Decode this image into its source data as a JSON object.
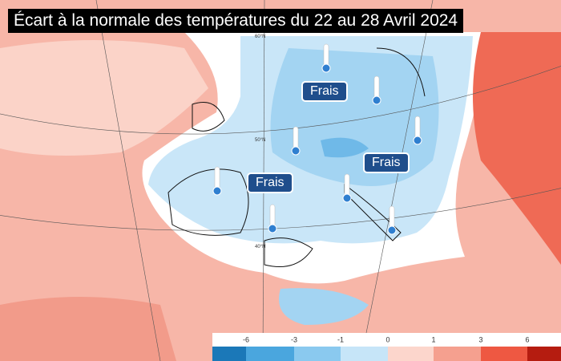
{
  "header": {
    "title": "Écart à la normale des températures du 22 au 28 Avril 2024"
  },
  "labels": [
    "Frais",
    "Frais",
    "Frais"
  ],
  "latitudes": [
    "60°N",
    "50°N",
    "40°N"
  ],
  "legend": {
    "ticks": [
      "-6",
      "-3",
      "-1",
      "0",
      "1",
      "3",
      "6"
    ],
    "colors": [
      "#1b78b8",
      "#4aa6de",
      "#8ac9ef",
      "#c6e5f8",
      "#fcd6cc",
      "#f5a08f",
      "#ee5842",
      "#b51c10"
    ]
  }
}
